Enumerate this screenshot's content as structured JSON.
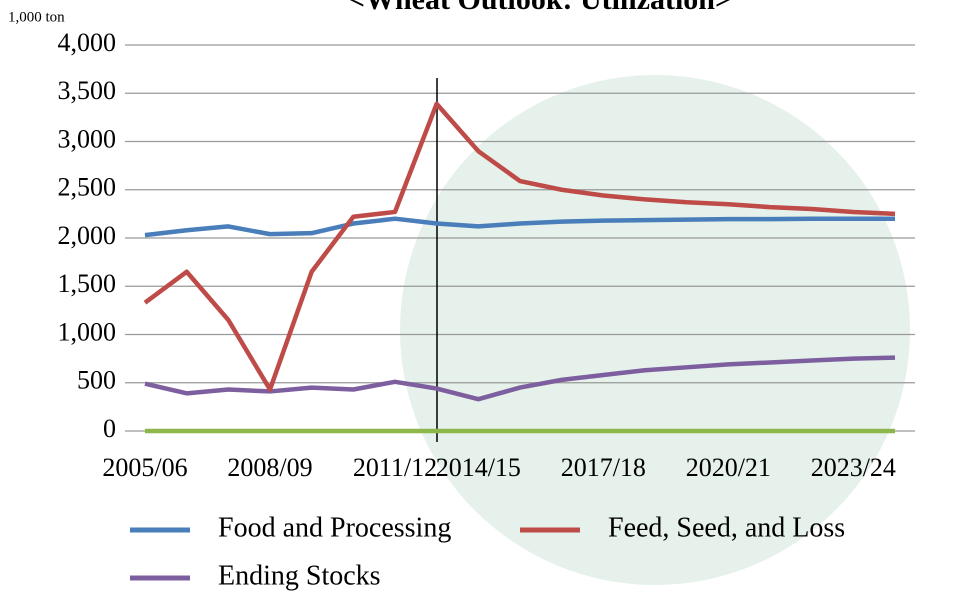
{
  "chart_data": {
    "type": "line",
    "title": "<Wheat Outlook: Utilization>",
    "y_unit": "1,000 ton",
    "categories": [
      "2005/06",
      null,
      null,
      "2008/09",
      null,
      null,
      "2011/12",
      null,
      "2014/15",
      null,
      null,
      "2017/18",
      null,
      null,
      "2020/21",
      null,
      null,
      "2023/24",
      null
    ],
    "series": [
      {
        "name": "Food and Processing",
        "color": "#4a7ebb",
        "values": [
          2030,
          2080,
          2120,
          2040,
          2050,
          2150,
          2200,
          2150,
          2120,
          2150,
          2170,
          2180,
          2185,
          2190,
          2195,
          2195,
          2200,
          2200,
          2200
        ]
      },
      {
        "name": "Feed, Seed, and Loss",
        "color": "#be4b48",
        "values": [
          1330,
          1650,
          1150,
          430,
          1650,
          2220,
          2270,
          3390,
          2900,
          2590,
          2500,
          2440,
          2400,
          2370,
          2350,
          2320,
          2300,
          2270,
          2250
        ]
      },
      {
        "name": "Ending Stocks",
        "color": "#7d5fa0",
        "values": [
          490,
          390,
          430,
          410,
          450,
          430,
          510,
          440,
          330,
          450,
          530,
          580,
          630,
          660,
          690,
          710,
          730,
          750,
          760
        ]
      },
      {
        "color": "#8db64b",
        "values": [
          0,
          0,
          0,
          0,
          0,
          0,
          0,
          0,
          0,
          0,
          0,
          0,
          0,
          0,
          0,
          0,
          0,
          0,
          0
        ]
      }
    ],
    "ylim": [
      0,
      4000
    ],
    "yticks": [
      0,
      500,
      {
        "value": 1000,
        "label": "1,000"
      },
      {
        "value": 1500,
        "label": "1,500"
      },
      {
        "value": 2000,
        "label": "2,000"
      },
      {
        "value": 2500,
        "label": "2,500"
      },
      {
        "value": 3000,
        "label": "3,000"
      },
      {
        "value": 3500,
        "label": "3,500"
      },
      {
        "value": 4000,
        "label": "4,000"
      }
    ],
    "grid": true
  }
}
